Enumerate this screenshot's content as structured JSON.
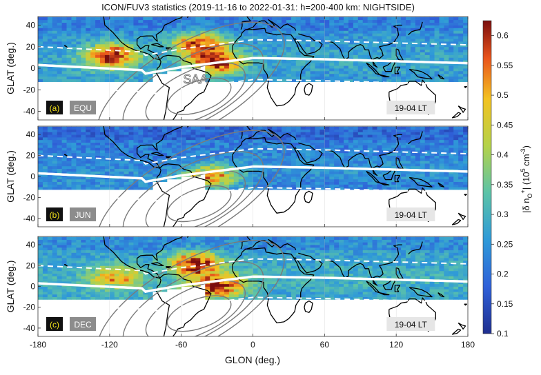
{
  "title": "ICON/FUV3 statistics (2019-11-16 to 2022-01-31: h=200-400 km: NIGHTSIDE)",
  "xlabel": "GLON (deg.)",
  "ylabel": "GLAT (deg.)",
  "colorbar": {
    "label_main": "|δ n",
    "label_sub": "O",
    "label_sup1": "+",
    "label_mid": "| (10",
    "label_sup2": "5",
    "label_unit": " cm",
    "label_sup3": "-3",
    "label_end": ")",
    "ticks": [
      "0.1",
      "0.15",
      "0.2",
      "0.25",
      "0.3",
      "0.35",
      "0.4",
      "0.45",
      "0.5",
      "0.55",
      "0.6"
    ],
    "range": [
      0.1,
      0.625
    ]
  },
  "chart_data": [
    {
      "type": "heatmap",
      "panel": "(a)",
      "season": "EQU",
      "local_time": "19-04 LT",
      "annotation": "SAA",
      "x_ticks": [
        "-180",
        "-120",
        "-60",
        "0",
        "60",
        "120",
        "180"
      ],
      "y_ticks": [
        "40",
        "20",
        "0",
        "-20",
        "-40"
      ],
      "xlim": [
        -180,
        180
      ],
      "ylim": [
        -48,
        48
      ],
      "enhancement_peaks": [
        {
          "lon": -118,
          "lat": 12,
          "value": 0.62
        },
        {
          "lon": -45,
          "lat": 22,
          "value": 0.6
        },
        {
          "lon": -30,
          "lat": 5,
          "value": 0.55
        }
      ],
      "background_value": 0.25
    },
    {
      "type": "heatmap",
      "panel": "(b)",
      "season": "JUN",
      "local_time": "19-04 LT",
      "x_ticks": [
        "-180",
        "-120",
        "-60",
        "0",
        "60",
        "120",
        "180"
      ],
      "y_ticks": [
        "40",
        "20",
        "0",
        "-20",
        "-40"
      ],
      "xlim": [
        -180,
        180
      ],
      "ylim": [
        -48,
        48
      ],
      "enhancement_peaks": [
        {
          "lon": -35,
          "lat": 0,
          "value": 0.5
        }
      ],
      "background_value": 0.22
    },
    {
      "type": "heatmap",
      "panel": "(c)",
      "season": "DEC",
      "local_time": "19-04 LT",
      "x_ticks": [
        "-180",
        "-120",
        "-60",
        "0",
        "60",
        "120",
        "180"
      ],
      "y_ticks": [
        "40",
        "20",
        "0",
        "-20",
        "-40"
      ],
      "xlim": [
        -180,
        180
      ],
      "ylim": [
        -48,
        48
      ],
      "enhancement_peaks": [
        {
          "lon": -48,
          "lat": 22,
          "value": 0.62
        },
        {
          "lon": -30,
          "lat": 0,
          "value": 0.62
        },
        {
          "lon": -115,
          "lat": 10,
          "value": 0.5
        }
      ],
      "background_value": 0.27
    }
  ]
}
